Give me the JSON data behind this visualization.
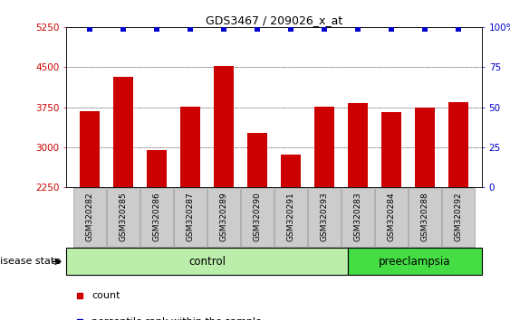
{
  "title": "GDS3467 / 209026_x_at",
  "samples": [
    "GSM320282",
    "GSM320285",
    "GSM320286",
    "GSM320287",
    "GSM320289",
    "GSM320290",
    "GSM320291",
    "GSM320293",
    "GSM320283",
    "GSM320284",
    "GSM320288",
    "GSM320292"
  ],
  "counts": [
    3680,
    4320,
    2950,
    3760,
    4520,
    3270,
    2860,
    3760,
    3830,
    3660,
    3740,
    3850
  ],
  "percentile_y": [
    99,
    99,
    99,
    99,
    99,
    99,
    99,
    99,
    99,
    99,
    99,
    99
  ],
  "n_control": 8,
  "bar_color": "#cc0000",
  "percentile_color": "#0000cc",
  "ylim": [
    2250,
    5250
  ],
  "yticks_left": [
    2250,
    3000,
    3750,
    4500,
    5250
  ],
  "yticks_right": [
    0,
    25,
    50,
    75,
    100
  ],
  "control_color": "#bbeeaa",
  "preeclampsia_color": "#44dd44",
  "xtick_bg": "#cccccc",
  "grid_color": "#000000",
  "title_fontsize": 9,
  "tick_fontsize": 7.5,
  "label_fontsize": 8
}
